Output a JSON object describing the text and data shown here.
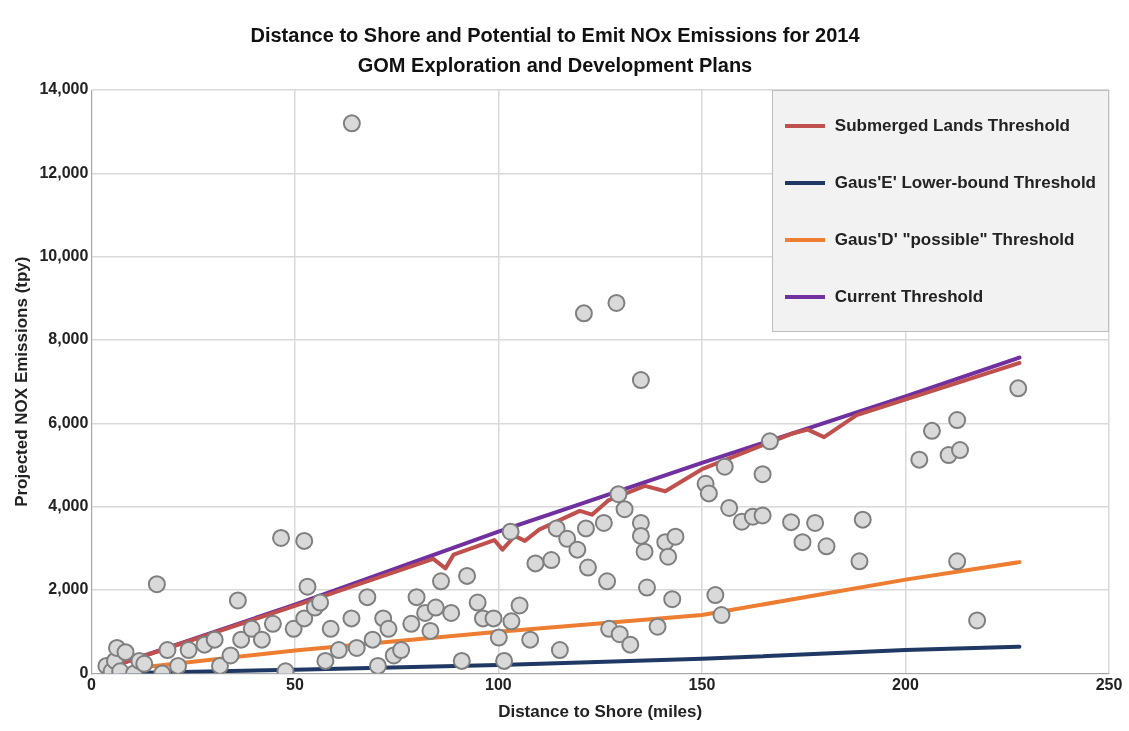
{
  "chart_data": {
    "type": "scatter",
    "title": "Distance to Shore and Potential to Emit NOx Emissions for 2014 GOM Exploration and Development Plans",
    "xlabel": "Distance to Shore (miles)",
    "ylabel": "Projected NOX Emissions (tpy)",
    "xlim": [
      0,
      250
    ],
    "xticks": [
      0,
      50,
      100,
      150,
      200,
      250
    ],
    "ylim": [
      0,
      14000
    ],
    "yticks": [
      0,
      {
        "value": 2000,
        "label": "2,000"
      },
      {
        "value": 4000,
        "label": "4,000"
      },
      {
        "value": 6000,
        "label": "6,000"
      },
      {
        "value": 8000,
        "label": "8,000"
      },
      {
        "value": 10000,
        "label": "10,000"
      },
      {
        "value": 12000,
        "label": "12,000"
      },
      {
        "value": 14000,
        "label": "14,000"
      }
    ],
    "grid": true,
    "legend": "top right",
    "series": [
      {
        "marker": "circle",
        "color": "#d9d9d9",
        "x": [
          3.7,
          5.0,
          5.8,
          6.3,
          7.1,
          8.4,
          10.5,
          11.8,
          13.0,
          16.1,
          17.4,
          18.7,
          21.3,
          23.9,
          27.8,
          30.3,
          31.6,
          34.2,
          36.0,
          36.8,
          39.4,
          41.9,
          44.6,
          46.6,
          47.7,
          49.7,
          52.3,
          52.3,
          53.1,
          54.9,
          56.2,
          57.5,
          58.8,
          60.8,
          63.9,
          64,
          65.2,
          67.8,
          69.1,
          70.4,
          71.7,
          73.0,
          74.3,
          76.1,
          78.6,
          79.9,
          82.0,
          83.3,
          84.6,
          85.9,
          88.4,
          91.0,
          92.3,
          94.9,
          96.2,
          98.8,
          100.1,
          101.4,
          103.2,
          103,
          105.2,
          107.8,
          109.1,
          113.0,
          114.3,
          115.1,
          116.9,
          119.4,
          121,
          121.5,
          122.0,
          125.9,
          126.7,
          127.2,
          129,
          129.5,
          129.8,
          131,
          132.4,
          135,
          135,
          135,
          135.9,
          136.5,
          139.1,
          141,
          141.7,
          142.7,
          143.5,
          150.9,
          151.7,
          153.3,
          154.8,
          155.6,
          156.7,
          159.8,
          162.5,
          164.9,
          164.9,
          166.7,
          171.9,
          174.7,
          177.8,
          180.6,
          188.7,
          189.5,
          203.4,
          206.5,
          210.6,
          212.7,
          213.4,
          212.7,
          217.6,
          227.7
        ],
        "values": [
          180,
          50,
          300,
          610,
          50,
          510,
          0,
          300,
          230,
          2140,
          0,
          560,
          180,
          560,
          690,
          810,
          180,
          430,
          1750,
          810,
          1070,
          810,
          1190,
          3250,
          50,
          1070,
          1320,
          3180,
          2080,
          1580,
          1700,
          300,
          1070,
          560,
          1320,
          13200,
          610,
          1830,
          810,
          180,
          1320,
          1070,
          430,
          560,
          1190,
          1830,
          1450,
          1020,
          1580,
          2210,
          1450,
          300,
          2340,
          1700,
          1320,
          1320,
          860,
          300,
          1250,
          3400,
          1630,
          810,
          2640,
          2720,
          3480,
          560,
          3230,
          2970,
          8640,
          3480,
          2540,
          3610,
          2210,
          1070,
          8890,
          4300,
          940,
          3940,
          690,
          7040,
          3610,
          3300,
          2920,
          2060,
          1120,
          3150,
          2800,
          1780,
          3280,
          4550,
          4320,
          1880,
          1400,
          4960,
          3970,
          3640,
          3760,
          3790,
          4780,
          5570,
          3630,
          3150,
          3610,
          3050,
          2690,
          3690,
          5130,
          5820,
          5240,
          6080,
          5360,
          2690,
          1270,
          6840
        ]
      },
      {
        "type": "line",
        "marker": "none",
        "name": "Submerged Lands Threshold",
        "color": "#c0504d",
        "x": [
          4,
          50,
          84,
          87,
          89,
          99,
          101,
          104,
          106.5,
          110,
          120,
          123,
          127,
          136,
          141,
          150,
          172,
          176,
          180,
          188,
          228
        ],
        "values": [
          130,
          1620,
          2750,
          2520,
          2850,
          3200,
          2970,
          3300,
          3180,
          3450,
          3900,
          3810,
          4150,
          4500,
          4370,
          4900,
          5750,
          5850,
          5670,
          6200,
          7450
        ]
      },
      {
        "type": "line",
        "marker": "none",
        "name": "Gaus'E' Lower-bound Threshold",
        "color": "#1f3864",
        "x": [
          4,
          50,
          100,
          150,
          200,
          228
        ],
        "values": [
          0,
          90,
          200,
          350,
          560,
          640
        ]
      },
      {
        "type": "line",
        "marker": "none",
        "name": "Gaus'D' \"possible\" Threshold",
        "color": "#ed7d31",
        "x": [
          4,
          50,
          100,
          150,
          200,
          228
        ],
        "values": [
          50,
          550,
          1000,
          1400,
          2250,
          2670
        ]
      },
      {
        "type": "line",
        "marker": "none",
        "name": "Current Threshold",
        "color": "#7030a0",
        "x": [
          4,
          50,
          100,
          150,
          200,
          228
        ],
        "values": [
          130,
          1650,
          3400,
          5050,
          6650,
          7580
        ]
      }
    ]
  }
}
